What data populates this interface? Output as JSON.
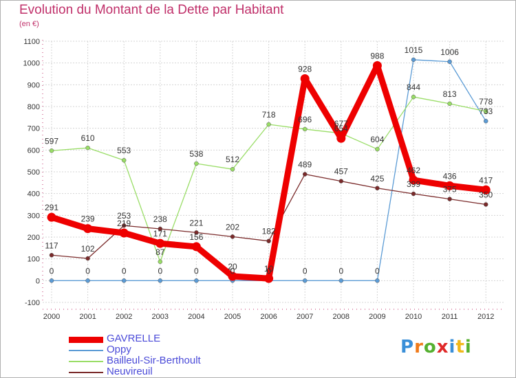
{
  "title": "Evolution du Montant de la Dette par Habitant",
  "subtitle": "(en €)",
  "logo": "Proxiti",
  "chart_data": {
    "type": "line",
    "title": "Evolution du Montant de la Dette par Habitant",
    "ylabel": "(en €)",
    "x": [
      "2000",
      "2001",
      "2002",
      "2003",
      "2004",
      "2005",
      "2006",
      "2007",
      "2008",
      "2009",
      "2010",
      "2011",
      "2012"
    ],
    "ylim": [
      -100,
      1100
    ],
    "yticks": [
      -100,
      0,
      100,
      200,
      300,
      400,
      500,
      600,
      700,
      800,
      900,
      1000,
      1100
    ],
    "grid": true,
    "legend_position": "bottom-left",
    "series": [
      {
        "name": "GAVRELLE",
        "color": "#ee0000",
        "values": [
          291,
          239,
          219,
          171,
          156,
          20,
          10,
          928,
          654,
          988,
          462,
          436,
          417
        ]
      },
      {
        "name": "Oppy",
        "color": "#5b9bd5",
        "values": [
          0,
          0,
          0,
          0,
          0,
          0,
          0,
          0,
          0,
          0,
          1015,
          1006,
          733
        ]
      },
      {
        "name": "Bailleul-Sir-Berthoult",
        "color": "#99dd66",
        "values": [
          597,
          610,
          553,
          87,
          538,
          512,
          718,
          696,
          677,
          604,
          844,
          813,
          778
        ]
      },
      {
        "name": "Neuvireuil",
        "color": "#7a2a2a",
        "values": [
          117,
          102,
          253,
          238,
          221,
          202,
          182,
          489,
          457,
          425,
          399,
          375,
          350
        ]
      }
    ]
  }
}
